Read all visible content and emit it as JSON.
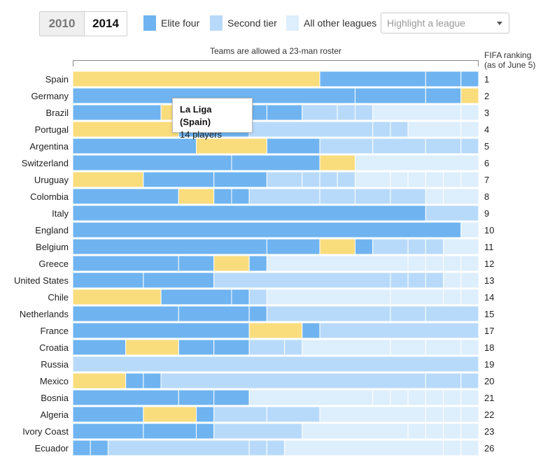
{
  "controls": {
    "years": [
      "2010",
      "2014"
    ],
    "active_year": "2014",
    "legend": [
      {
        "label": "Elite four",
        "color": "#6fb4f0"
      },
      {
        "label": "Second tier",
        "color": "#b8dafa"
      },
      {
        "label": "All other leagues",
        "color": "#ddeefc"
      }
    ],
    "highlight_placeholder": "Highlight a league"
  },
  "annotation": "Teams are allowed a 23-man roster",
  "rank_header": [
    "FIFA ranking",
    "(as of June 5)"
  ],
  "tooltip": {
    "title": "La Liga (Spain)",
    "text": "14 players"
  },
  "colors": {
    "domestic": "#f9dc7c",
    "elite": "#6fb4f0",
    "second": "#b8dafa",
    "other": "#ddeefc"
  },
  "chart_data": {
    "type": "bar",
    "stacked": true,
    "x_unit": "players",
    "xlim": [
      0,
      23
    ],
    "segment_types": {
      "D": "Own-country league (highlighted)",
      "E": "Elite four",
      "S": "Second tier",
      "O": "All other leagues"
    },
    "teams": [
      {
        "country": "Spain",
        "rank": 1,
        "segments": [
          [
            "D",
            14
          ],
          [
            "E",
            6
          ],
          [
            "E",
            2
          ],
          [
            "E",
            1
          ]
        ]
      },
      {
        "country": "Germany",
        "rank": 2,
        "segments": [
          [
            "E",
            16
          ],
          [
            "E",
            4
          ],
          [
            "E",
            2
          ],
          [
            "D",
            1
          ]
        ]
      },
      {
        "country": "Brazil",
        "rank": 3,
        "segments": [
          [
            "E",
            5
          ],
          [
            "D",
            1
          ],
          [
            "E",
            1
          ],
          [
            "E",
            3
          ],
          [
            "E",
            1
          ],
          [
            "E",
            2
          ],
          [
            "S",
            2
          ],
          [
            "S",
            1
          ],
          [
            "S",
            1
          ],
          [
            "O",
            5
          ],
          [
            "O",
            1
          ]
        ]
      },
      {
        "country": "Portugal",
        "rank": 4,
        "segments": [
          [
            "D",
            6
          ],
          [
            "E",
            4
          ],
          [
            "S",
            7
          ],
          [
            "S",
            1
          ],
          [
            "S",
            1
          ],
          [
            "O",
            3
          ],
          [
            "O",
            1
          ]
        ]
      },
      {
        "country": "Argentina",
        "rank": 5,
        "segments": [
          [
            "E",
            7
          ],
          [
            "D",
            4
          ],
          [
            "E",
            3
          ],
          [
            "S",
            3
          ],
          [
            "S",
            3
          ],
          [
            "S",
            2
          ],
          [
            "S",
            1
          ]
        ]
      },
      {
        "country": "Switzerland",
        "rank": 6,
        "segments": [
          [
            "E",
            9
          ],
          [
            "E",
            5
          ],
          [
            "D",
            2
          ],
          [
            "O",
            7
          ]
        ]
      },
      {
        "country": "Uruguay",
        "rank": 7,
        "segments": [
          [
            "D",
            4
          ],
          [
            "E",
            4
          ],
          [
            "E",
            3
          ],
          [
            "S",
            2
          ],
          [
            "S",
            1
          ],
          [
            "S",
            1
          ],
          [
            "S",
            1
          ],
          [
            "O",
            2
          ],
          [
            "O",
            1
          ],
          [
            "O",
            1
          ],
          [
            "O",
            1
          ],
          [
            "O",
            1
          ],
          [
            "O",
            1
          ]
        ]
      },
      {
        "country": "Colombia",
        "rank": 8,
        "segments": [
          [
            "E",
            6
          ],
          [
            "D",
            2
          ],
          [
            "E",
            1
          ],
          [
            "E",
            1
          ],
          [
            "S",
            4
          ],
          [
            "S",
            2
          ],
          [
            "S",
            2
          ],
          [
            "S",
            2
          ],
          [
            "O",
            1
          ],
          [
            "O",
            2
          ]
        ]
      },
      {
        "country": "Italy",
        "rank": 9,
        "segments": [
          [
            "E",
            20
          ],
          [
            "S",
            3
          ]
        ]
      },
      {
        "country": "England",
        "rank": 10,
        "segments": [
          [
            "E",
            22
          ],
          [
            "O",
            1
          ]
        ]
      },
      {
        "country": "Belgium",
        "rank": 11,
        "segments": [
          [
            "E",
            11
          ],
          [
            "E",
            3
          ],
          [
            "D",
            2
          ],
          [
            "E",
            1
          ],
          [
            "S",
            2
          ],
          [
            "S",
            1
          ],
          [
            "S",
            1
          ],
          [
            "O",
            2
          ]
        ]
      },
      {
        "country": "Greece",
        "rank": 12,
        "segments": [
          [
            "E",
            6
          ],
          [
            "E",
            2
          ],
          [
            "D",
            2
          ],
          [
            "E",
            1
          ],
          [
            "O",
            8
          ],
          [
            "O",
            1
          ],
          [
            "O",
            1
          ],
          [
            "O",
            1
          ],
          [
            "O",
            1
          ]
        ]
      },
      {
        "country": "United States",
        "rank": 13,
        "segments": [
          [
            "E",
            4
          ],
          [
            "E",
            4
          ],
          [
            "S",
            10
          ],
          [
            "S",
            1
          ],
          [
            "S",
            1
          ],
          [
            "S",
            1
          ],
          [
            "O",
            1
          ],
          [
            "O",
            1
          ]
        ]
      },
      {
        "country": "Chile",
        "rank": 14,
        "segments": [
          [
            "D",
            5
          ],
          [
            "E",
            4
          ],
          [
            "E",
            1
          ],
          [
            "S",
            1
          ],
          [
            "O",
            7
          ],
          [
            "O",
            3
          ],
          [
            "O",
            1
          ],
          [
            "O",
            1
          ]
        ]
      },
      {
        "country": "Netherlands",
        "rank": 15,
        "segments": [
          [
            "E",
            6
          ],
          [
            "E",
            4
          ],
          [
            "E",
            1
          ],
          [
            "S",
            7
          ],
          [
            "S",
            2
          ],
          [
            "S",
            3
          ]
        ]
      },
      {
        "country": "France",
        "rank": 17,
        "segments": [
          [
            "E",
            10
          ],
          [
            "D",
            3
          ],
          [
            "E",
            1
          ],
          [
            "S",
            9
          ]
        ]
      },
      {
        "country": "Croatia",
        "rank": 18,
        "segments": [
          [
            "E",
            3
          ],
          [
            "D",
            3
          ],
          [
            "E",
            2
          ],
          [
            "E",
            2
          ],
          [
            "S",
            2
          ],
          [
            "S",
            1
          ],
          [
            "O",
            5
          ],
          [
            "O",
            2
          ],
          [
            "O",
            2
          ],
          [
            "O",
            1
          ]
        ]
      },
      {
        "country": "Russia",
        "rank": 19,
        "segments": [
          [
            "S",
            23
          ]
        ]
      },
      {
        "country": "Mexico",
        "rank": 20,
        "segments": [
          [
            "D",
            3
          ],
          [
            "E",
            1
          ],
          [
            "E",
            1
          ],
          [
            "S",
            15
          ],
          [
            "S",
            2
          ],
          [
            "S",
            1
          ]
        ]
      },
      {
        "country": "Bosnia",
        "rank": 21,
        "segments": [
          [
            "E",
            6
          ],
          [
            "E",
            2
          ],
          [
            "E",
            2
          ],
          [
            "O",
            7
          ],
          [
            "O",
            1
          ],
          [
            "O",
            1
          ],
          [
            "O",
            1
          ],
          [
            "O",
            1
          ],
          [
            "O",
            1
          ],
          [
            "O",
            1
          ]
        ]
      },
      {
        "country": "Algeria",
        "rank": 22,
        "segments": [
          [
            "E",
            4
          ],
          [
            "D",
            3
          ],
          [
            "E",
            1
          ],
          [
            "S",
            3
          ],
          [
            "S",
            3
          ],
          [
            "O",
            6
          ],
          [
            "O",
            1
          ],
          [
            "O",
            1
          ],
          [
            "O",
            1
          ]
        ]
      },
      {
        "country": "Ivory Coast",
        "rank": 23,
        "segments": [
          [
            "E",
            4
          ],
          [
            "E",
            3
          ],
          [
            "E",
            1
          ],
          [
            "S",
            5
          ],
          [
            "O",
            6
          ],
          [
            "O",
            1
          ],
          [
            "O",
            1
          ],
          [
            "O",
            1
          ],
          [
            "O",
            1
          ]
        ]
      },
      {
        "country": "Ecuador",
        "rank": 26,
        "segments": [
          [
            "E",
            1
          ],
          [
            "E",
            1
          ],
          [
            "S",
            8
          ],
          [
            "S",
            1
          ],
          [
            "S",
            1
          ],
          [
            "O",
            9
          ],
          [
            "O",
            1
          ],
          [
            "O",
            1
          ]
        ]
      }
    ]
  }
}
